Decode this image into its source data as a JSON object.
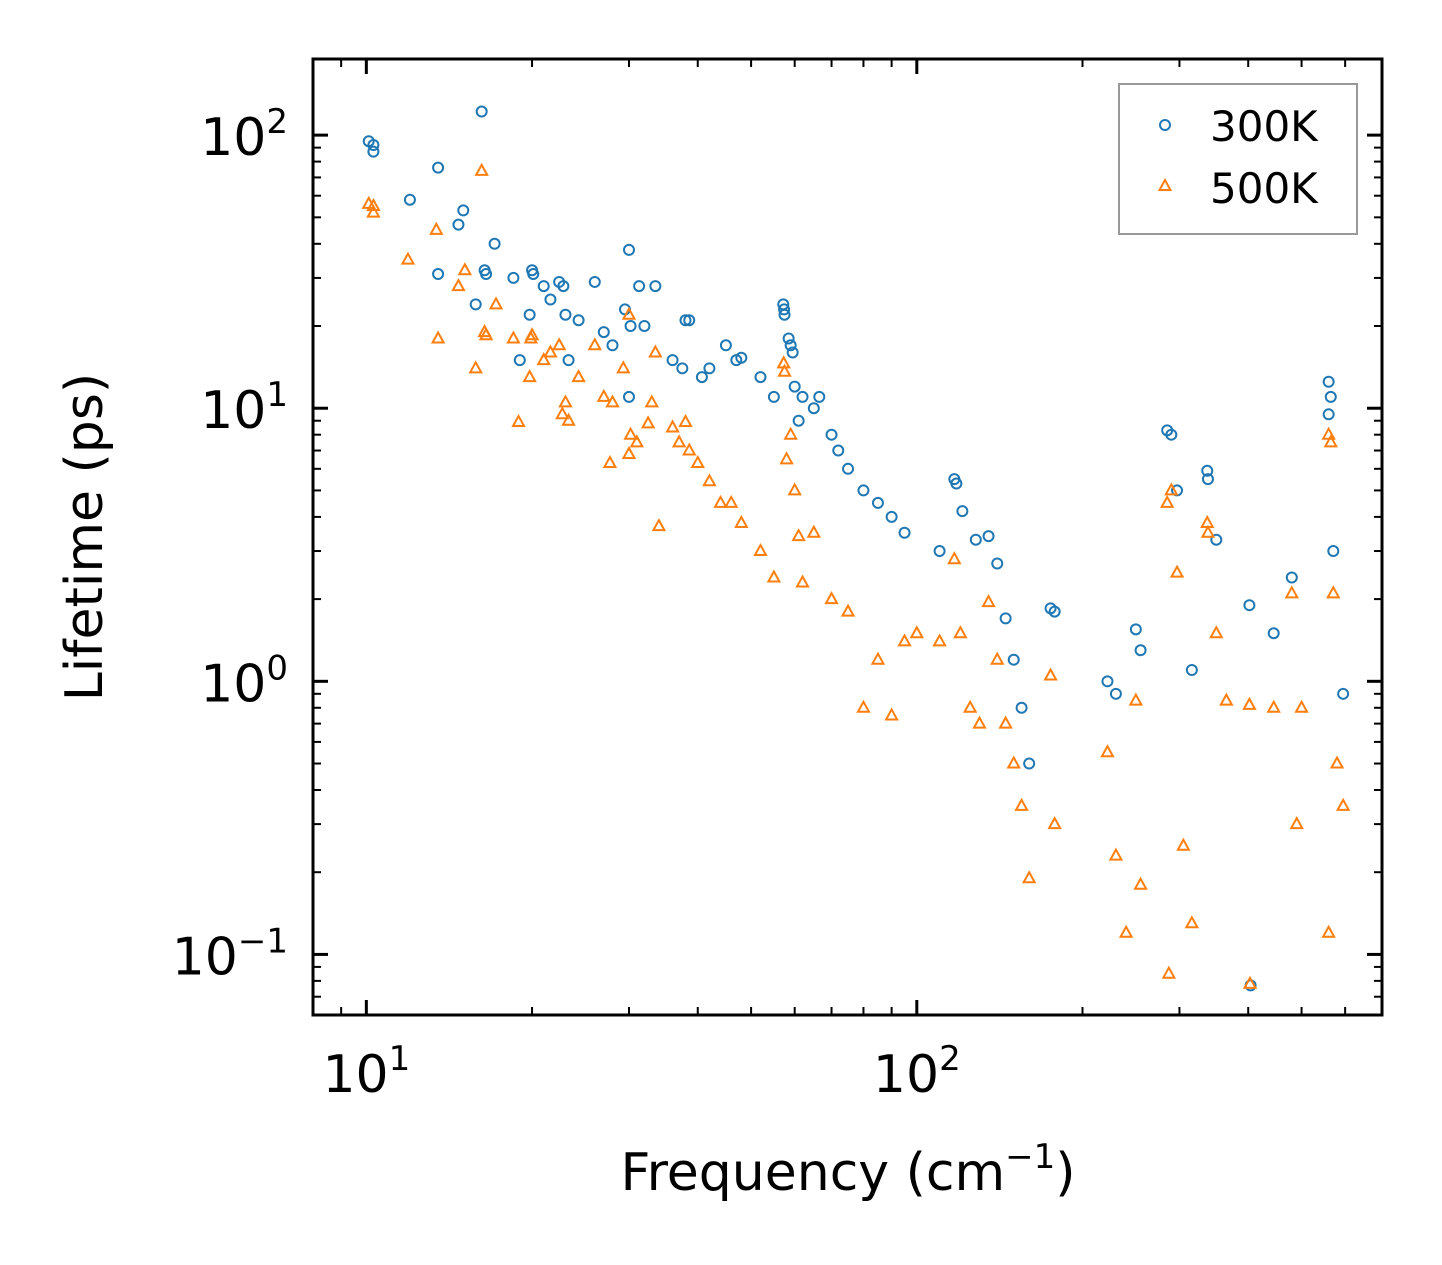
{
  "chart_data": {
    "type": "scatter",
    "title": "",
    "xlabel": "Frequency (cm",
    "xlabel_sup": "−1",
    "xlabel_end": ")",
    "ylabel": "Lifetime (ps)",
    "xscale": "log",
    "yscale": "log",
    "xlim": [
      8,
      700
    ],
    "ylim": [
      0.06,
      190
    ],
    "x_ticks": [
      {
        "value": 10,
        "base": "10",
        "exp": "1"
      },
      {
        "value": 100,
        "base": "10",
        "exp": "2"
      }
    ],
    "y_ticks": [
      {
        "value": 0.1,
        "base": "10",
        "exp": "−1"
      },
      {
        "value": 1,
        "base": "10",
        "exp": "0"
      },
      {
        "value": 10,
        "base": "10",
        "exp": "1"
      },
      {
        "value": 100,
        "base": "10",
        "exp": "2"
      }
    ],
    "legend": {
      "position": "top-right",
      "entries": [
        "300K",
        "500K"
      ]
    },
    "colors": {
      "300K": "#1f77b4",
      "500K": "#ff7f0e"
    },
    "series": [
      {
        "name": "300K",
        "marker": "circle",
        "points": [
          [
            10.1,
            95
          ],
          [
            10.3,
            92
          ],
          [
            10.3,
            87
          ],
          [
            12,
            58
          ],
          [
            13.5,
            76
          ],
          [
            13.5,
            31
          ],
          [
            14.7,
            47
          ],
          [
            15,
            53
          ],
          [
            15.8,
            24
          ],
          [
            16.2,
            122
          ],
          [
            16.4,
            32
          ],
          [
            16.5,
            31
          ],
          [
            17.1,
            40
          ],
          [
            18.5,
            30
          ],
          [
            19,
            15
          ],
          [
            19.8,
            22
          ],
          [
            20,
            32
          ],
          [
            20.1,
            31
          ],
          [
            21,
            28
          ],
          [
            21.6,
            25
          ],
          [
            22.4,
            29
          ],
          [
            22.8,
            28
          ],
          [
            23,
            22
          ],
          [
            23.3,
            15
          ],
          [
            24.3,
            21
          ],
          [
            26,
            29
          ],
          [
            27,
            19
          ],
          [
            28,
            17
          ],
          [
            29.5,
            23
          ],
          [
            30,
            38
          ],
          [
            30,
            11
          ],
          [
            30.2,
            20
          ],
          [
            31.3,
            28
          ],
          [
            32,
            20
          ],
          [
            33.5,
            28
          ],
          [
            36,
            15
          ],
          [
            37.5,
            14
          ],
          [
            38,
            21
          ],
          [
            38.6,
            21
          ],
          [
            40.7,
            13
          ],
          [
            42,
            14
          ],
          [
            45,
            17
          ],
          [
            47,
            15
          ],
          [
            48,
            15.3
          ],
          [
            52,
            13
          ],
          [
            55,
            11
          ],
          [
            57.2,
            24
          ],
          [
            57.4,
            23
          ],
          [
            57.5,
            22
          ],
          [
            58.5,
            18
          ],
          [
            59,
            17
          ],
          [
            59.5,
            16
          ],
          [
            60,
            12
          ],
          [
            61,
            9
          ],
          [
            62,
            11
          ],
          [
            65,
            10
          ],
          [
            66.5,
            11
          ],
          [
            70,
            8
          ],
          [
            72,
            7
          ],
          [
            75,
            6
          ],
          [
            80,
            5
          ],
          [
            85,
            4.5
          ],
          [
            90,
            4
          ],
          [
            95,
            3.5
          ],
          [
            110,
            3
          ],
          [
            117,
            5.5
          ],
          [
            118,
            5.3
          ],
          [
            121,
            4.2
          ],
          [
            128,
            3.3
          ],
          [
            135,
            3.4
          ],
          [
            140,
            2.7
          ],
          [
            145,
            1.7
          ],
          [
            150,
            1.2
          ],
          [
            155,
            0.8
          ],
          [
            160,
            0.5
          ],
          [
            175,
            1.85
          ],
          [
            178,
            1.8
          ],
          [
            222,
            1
          ],
          [
            230,
            0.9
          ],
          [
            250,
            1.55
          ],
          [
            255,
            1.3
          ],
          [
            285,
            8.3
          ],
          [
            290,
            8
          ],
          [
            297,
            5
          ],
          [
            316,
            1.1
          ],
          [
            337,
            5.9
          ],
          [
            338,
            5.5
          ],
          [
            350,
            3.3
          ],
          [
            402,
            1.9
          ],
          [
            404,
            0.077
          ],
          [
            445,
            1.5
          ],
          [
            480,
            2.4
          ],
          [
            560,
            12.5
          ],
          [
            565,
            11
          ],
          [
            560,
            9.5
          ],
          [
            571,
            3
          ],
          [
            595,
            0.9
          ]
        ]
      },
      {
        "name": "500K",
        "marker": "triangle",
        "points": [
          [
            10.1,
            56
          ],
          [
            10.3,
            55
          ],
          [
            10.3,
            52
          ],
          [
            11.9,
            35
          ],
          [
            13.4,
            45
          ],
          [
            13.5,
            18
          ],
          [
            14.7,
            28
          ],
          [
            15.1,
            32
          ],
          [
            15.8,
            14
          ],
          [
            16.2,
            74
          ],
          [
            16.4,
            19
          ],
          [
            16.5,
            18.5
          ],
          [
            17.2,
            24
          ],
          [
            18.5,
            18
          ],
          [
            18.9,
            8.9
          ],
          [
            19.8,
            13
          ],
          [
            19.9,
            18
          ],
          [
            20,
            18.5
          ],
          [
            21,
            15
          ],
          [
            21.6,
            16
          ],
          [
            22.4,
            17
          ],
          [
            22.7,
            9.5
          ],
          [
            23,
            10.5
          ],
          [
            23.3,
            9
          ],
          [
            24.3,
            13
          ],
          [
            26,
            17
          ],
          [
            27,
            11
          ],
          [
            27.7,
            6.3
          ],
          [
            28,
            10.5
          ],
          [
            29.3,
            14
          ],
          [
            30,
            22
          ],
          [
            30,
            6.8
          ],
          [
            30.2,
            8
          ],
          [
            31,
            7.5
          ],
          [
            32.5,
            8.8
          ],
          [
            33,
            10.5
          ],
          [
            33.5,
            16
          ],
          [
            34,
            3.7
          ],
          [
            36,
            8.5
          ],
          [
            37,
            7.5
          ],
          [
            38,
            8.9
          ],
          [
            38.6,
            7
          ],
          [
            40,
            6.3
          ],
          [
            42,
            5.4
          ],
          [
            44,
            4.5
          ],
          [
            46,
            4.5
          ],
          [
            48,
            3.8
          ],
          [
            52,
            3
          ],
          [
            55,
            2.4
          ],
          [
            57.3,
            14.6
          ],
          [
            57.5,
            13.6
          ],
          [
            58,
            6.5
          ],
          [
            59,
            8
          ],
          [
            60,
            5
          ],
          [
            61,
            3.4
          ],
          [
            62,
            2.3
          ],
          [
            65,
            3.5
          ],
          [
            70,
            2
          ],
          [
            75,
            1.8
          ],
          [
            80,
            0.8
          ],
          [
            85,
            1.2
          ],
          [
            90,
            0.75
          ],
          [
            95,
            1.4
          ],
          [
            100,
            1.5
          ],
          [
            110,
            1.4
          ],
          [
            117,
            2.8
          ],
          [
            120,
            1.5
          ],
          [
            125,
            0.8
          ],
          [
            130,
            0.7
          ],
          [
            135,
            1.95
          ],
          [
            140,
            1.2
          ],
          [
            145,
            0.7
          ],
          [
            150,
            0.5
          ],
          [
            155,
            0.35
          ],
          [
            160,
            0.19
          ],
          [
            175,
            1.05
          ],
          [
            178,
            0.3
          ],
          [
            222,
            0.55
          ],
          [
            230,
            0.23
          ],
          [
            240,
            0.12
          ],
          [
            250,
            0.85
          ],
          [
            255,
            0.18
          ],
          [
            285,
            4.5
          ],
          [
            290,
            5
          ],
          [
            287,
            0.085
          ],
          [
            297,
            2.5
          ],
          [
            305,
            0.25
          ],
          [
            316,
            0.13
          ],
          [
            337,
            3.8
          ],
          [
            338,
            3.5
          ],
          [
            350,
            1.5
          ],
          [
            365,
            0.85
          ],
          [
            402,
            0.82
          ],
          [
            403,
            0.078
          ],
          [
            445,
            0.8
          ],
          [
            480,
            2.1
          ],
          [
            490,
            0.3
          ],
          [
            500,
            0.8
          ],
          [
            560,
            8
          ],
          [
            565,
            7.5
          ],
          [
            560,
            0.12
          ],
          [
            571,
            2.1
          ],
          [
            580,
            0.5
          ],
          [
            595,
            0.35
          ]
        ]
      }
    ]
  }
}
